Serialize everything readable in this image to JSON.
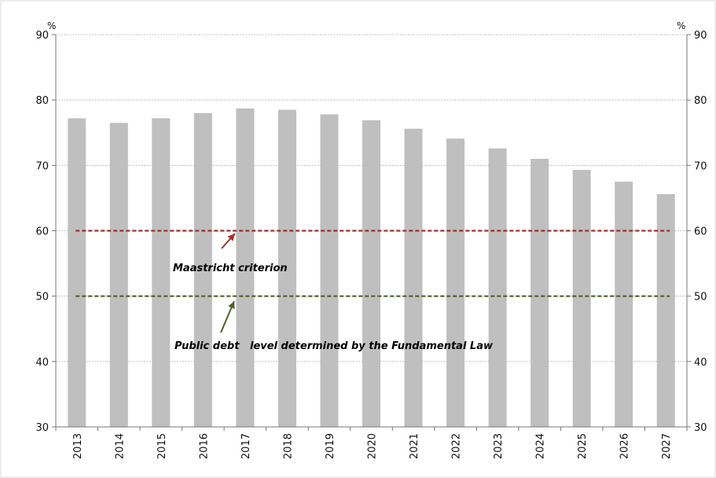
{
  "chart_data": {
    "type": "bar",
    "categories": [
      "2013",
      "2014",
      "2015",
      "2016",
      "2017",
      "2018",
      "2019",
      "2020",
      "2021",
      "2022",
      "2023",
      "2024",
      "2025",
      "2026",
      "2027"
    ],
    "values": [
      77.2,
      76.5,
      77.2,
      78.0,
      78.7,
      78.5,
      77.8,
      76.9,
      75.6,
      74.1,
      72.6,
      71.0,
      69.3,
      67.5,
      65.6
    ],
    "ylim": [
      30,
      90
    ],
    "yticks": [
      30,
      40,
      50,
      60,
      70,
      80,
      90
    ],
    "y_unit_left": "%",
    "y_unit_right": "%",
    "grid": true,
    "bar_color": "#bfbfbf",
    "reference_lines": [
      {
        "value": 60,
        "color": "#a0312d",
        "label": "Maastricht criterion"
      },
      {
        "value": 50,
        "color": "#4f6228",
        "label": "Public debt   level determined by the Fundamental Law"
      }
    ]
  }
}
